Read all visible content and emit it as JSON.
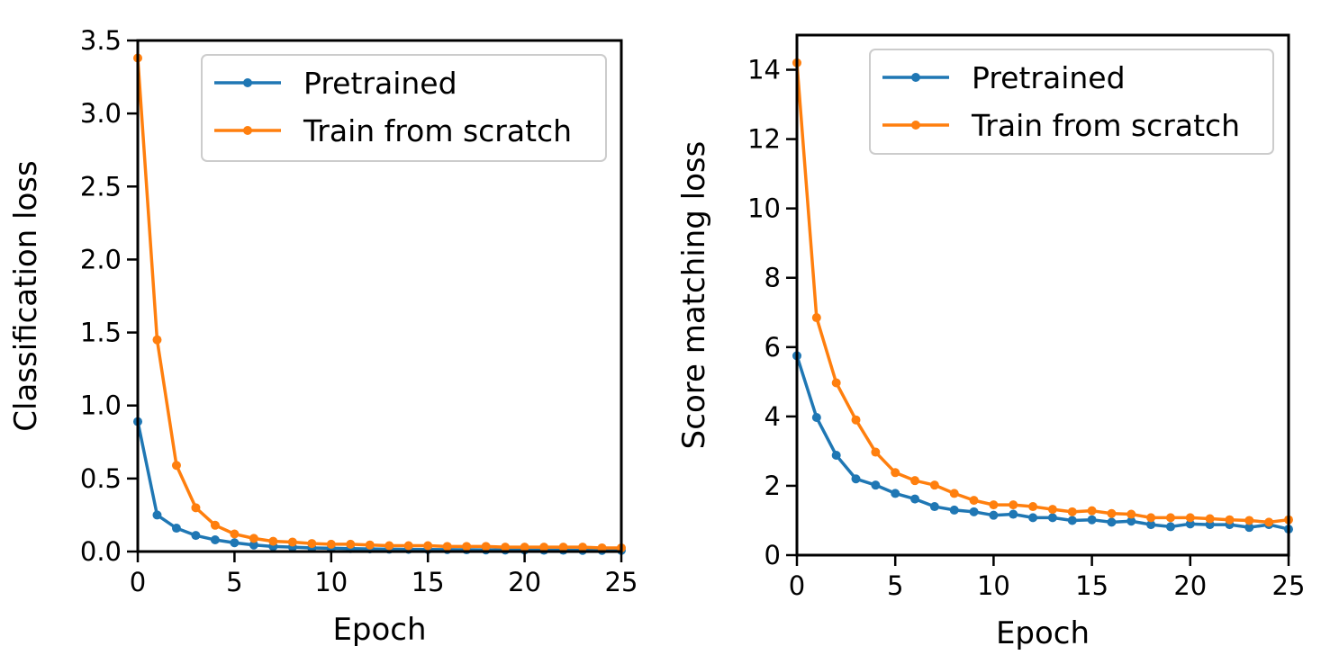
{
  "colors": {
    "pretrained": "#1f77b4",
    "scratch": "#ff7f0e",
    "axis": "#000000",
    "legend_border": "#cccccc"
  },
  "chart_data": [
    {
      "type": "line",
      "title": "",
      "xlabel": "Epoch",
      "ylabel": "Classification loss",
      "xlim": [
        0,
        25
      ],
      "ylim": [
        0,
        3.5
      ],
      "xticks": [
        0,
        5,
        10,
        15,
        20,
        25
      ],
      "xtick_labels": [
        "0",
        "5",
        "10",
        "15",
        "20",
        "25"
      ],
      "yticks": [
        0,
        0.5,
        1,
        1.5,
        2,
        2.5,
        3,
        3.5
      ],
      "ytick_labels": [
        "0.0",
        "0.5",
        "1.0",
        "1.5",
        "2.0",
        "2.5",
        "3.0",
        "3.5"
      ],
      "grid": false,
      "legend_position": "top-right",
      "x": [
        0,
        1,
        2,
        3,
        4,
        5,
        6,
        7,
        8,
        9,
        10,
        11,
        12,
        13,
        14,
        15,
        16,
        17,
        18,
        19,
        20,
        21,
        22,
        23,
        24,
        25
      ],
      "series": [
        {
          "name": "Pretrained",
          "color": "#1f77b4",
          "values": [
            0.89,
            0.25,
            0.16,
            0.11,
            0.08,
            0.06,
            0.045,
            0.035,
            0.03,
            0.025,
            0.022,
            0.02,
            0.018,
            0.016,
            0.015,
            0.014,
            0.013,
            0.012,
            0.011,
            0.01,
            0.01,
            0.009,
            0.009,
            0.008,
            0.008,
            0.008
          ]
        },
        {
          "name": "Train from scratch",
          "color": "#ff7f0e",
          "values": [
            3.38,
            1.45,
            0.59,
            0.3,
            0.18,
            0.12,
            0.09,
            0.07,
            0.065,
            0.055,
            0.05,
            0.05,
            0.045,
            0.04,
            0.04,
            0.04,
            0.035,
            0.035,
            0.035,
            0.03,
            0.03,
            0.03,
            0.03,
            0.03,
            0.025,
            0.025
          ]
        }
      ]
    },
    {
      "type": "line",
      "title": "",
      "xlabel": "Epoch",
      "ylabel": "Score matching loss",
      "xlim": [
        0,
        25
      ],
      "ylim": [
        0,
        15
      ],
      "xticks": [
        0,
        5,
        10,
        15,
        20,
        25
      ],
      "xtick_labels": [
        "0",
        "5",
        "10",
        "15",
        "20",
        "25"
      ],
      "yticks": [
        0,
        2,
        4,
        6,
        8,
        10,
        12,
        14
      ],
      "ytick_labels": [
        "0",
        "2",
        "4",
        "6",
        "8",
        "10",
        "12",
        "14"
      ],
      "grid": false,
      "legend_position": "top-right",
      "x": [
        0,
        1,
        2,
        3,
        4,
        5,
        6,
        7,
        8,
        9,
        10,
        11,
        12,
        13,
        14,
        15,
        16,
        17,
        18,
        19,
        20,
        21,
        22,
        23,
        24,
        25
      ],
      "series": [
        {
          "name": "Pretrained",
          "color": "#1f77b4",
          "values": [
            5.75,
            3.97,
            2.88,
            2.2,
            2.02,
            1.78,
            1.62,
            1.4,
            1.3,
            1.25,
            1.15,
            1.18,
            1.08,
            1.08,
            1.0,
            1.02,
            0.95,
            0.98,
            0.88,
            0.82,
            0.9,
            0.88,
            0.88,
            0.8,
            0.88,
            0.75
          ]
        },
        {
          "name": "Train from scratch",
          "color": "#ff7f0e",
          "values": [
            14.2,
            6.85,
            4.97,
            3.9,
            2.97,
            2.38,
            2.15,
            2.02,
            1.78,
            1.58,
            1.45,
            1.45,
            1.4,
            1.32,
            1.25,
            1.28,
            1.2,
            1.18,
            1.08,
            1.08,
            1.08,
            1.05,
            1.02,
            1.0,
            0.95,
            1.02
          ]
        }
      ]
    }
  ]
}
